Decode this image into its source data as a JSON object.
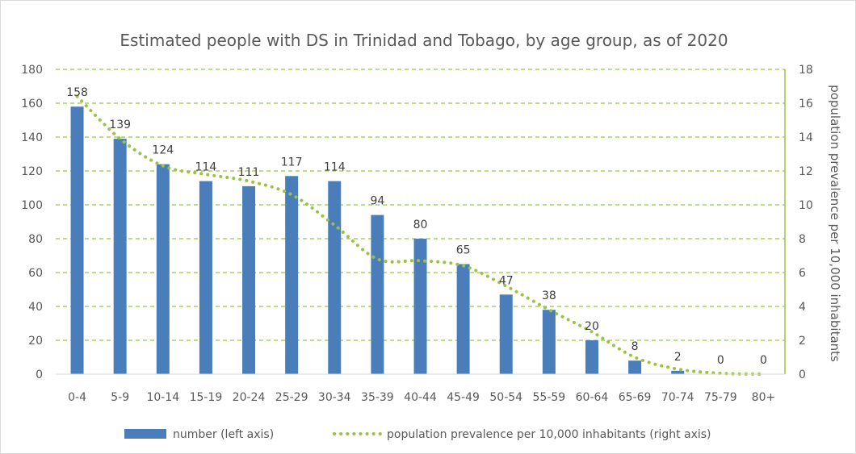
{
  "chart_data": {
    "type": "bar",
    "title": "Estimated people with DS in Trinidad and Tobago, by age group, as of 2020",
    "categories": [
      "0-4",
      "5-9",
      "10-14",
      "15-19",
      "20-24",
      "25-29",
      "30-34",
      "35-39",
      "40-44",
      "45-49",
      "50-54",
      "55-59",
      "60-64",
      "65-69",
      "70-74",
      "75-79",
      "80+"
    ],
    "series": [
      {
        "name": "number (left axis)",
        "type": "bar",
        "axis": "left",
        "color": "#4a7ebb",
        "values": [
          158,
          139,
          124,
          114,
          111,
          117,
          114,
          94,
          80,
          65,
          47,
          38,
          20,
          8,
          2,
          0,
          0
        ],
        "data_labels": [
          "158",
          "139",
          "124",
          "114",
          "111",
          "117",
          "114",
          "94",
          "80",
          "65",
          "47",
          "38",
          "20",
          "8",
          "2",
          "0",
          "0"
        ]
      },
      {
        "name": "population prevalence per 10,000 inhabitants (right axis)",
        "type": "line",
        "style": "dotted",
        "axis": "right",
        "color": "#9bc340",
        "values": [
          16.4,
          13.9,
          12.3,
          11.8,
          11.4,
          10.6,
          8.8,
          6.8,
          6.7,
          6.4,
          5.2,
          3.8,
          2.5,
          1.0,
          0.3,
          0.05,
          0
        ]
      }
    ],
    "y_left": {
      "ylim": [
        0,
        180
      ],
      "ticks": [
        "0",
        "20",
        "40",
        "60",
        "80",
        "100",
        "120",
        "140",
        "160",
        "180"
      ],
      "label": ""
    },
    "y_right": {
      "ylim": [
        0,
        18
      ],
      "ticks": [
        "0",
        "2",
        "4",
        "6",
        "8",
        "10",
        "12",
        "14",
        "16",
        "18"
      ],
      "label": "population prevalence per 10,000 inhabitants"
    },
    "xlabel": "",
    "grid": "horizontal dashed",
    "grid_color": "#9bc340",
    "legend_position": "bottom"
  }
}
